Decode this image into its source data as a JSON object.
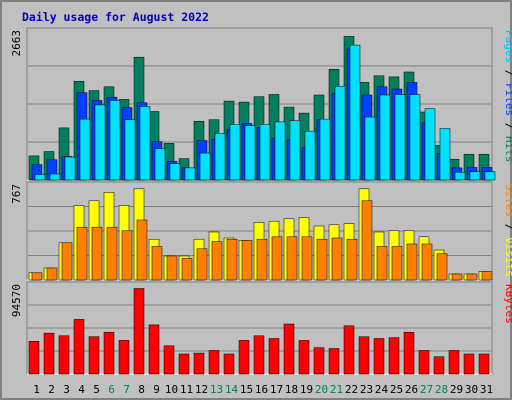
{
  "chart_data": {
    "type": "bar",
    "title": "Daily usage for August 2022",
    "categories": [
      "1",
      "2",
      "3",
      "4",
      "5",
      "6",
      "7",
      "8",
      "9",
      "10",
      "11",
      "12",
      "13",
      "14",
      "15",
      "16",
      "17",
      "18",
      "19",
      "20",
      "21",
      "22",
      "23",
      "24",
      "25",
      "26",
      "27",
      "28",
      "29",
      "30",
      "31"
    ],
    "weekend_days": [
      "6",
      "7",
      "13",
      "14",
      "20",
      "21",
      "27",
      "28"
    ],
    "panels": [
      {
        "ylabel_max": "2663",
        "ymax": 2663,
        "right_labels": [
          {
            "text": "Pages",
            "color": "#00c0ff"
          },
          {
            "text": " / ",
            "color": "#000000"
          },
          {
            "text": "Files",
            "color": "#0040ff"
          },
          {
            "text": " / ",
            "color": "#000000"
          },
          {
            "text": "Hits",
            "color": "#008060"
          }
        ],
        "series": [
          {
            "name": "Hits",
            "color": "#008060",
            "values": [
              440,
              520,
              950,
              1800,
              1630,
              1700,
              1470,
              2240,
              1250,
              670,
              390,
              1070,
              1100,
              1440,
              1420,
              1520,
              1560,
              1330,
              1220,
              1550,
              2020,
              2620,
              1780,
              1900,
              1880,
              1970,
              1240,
              630,
              380,
              470,
              470
            ]
          },
          {
            "name": "Files",
            "color": "#0040ff",
            "values": [
              280,
              370,
              430,
              1590,
              1450,
              1510,
              1320,
              1410,
              700,
              340,
              220,
              720,
              740,
              920,
              1030,
              960,
              760,
              730,
              590,
              1100,
              1580,
              2390,
              1550,
              1700,
              1660,
              1780,
              1040,
              480,
              220,
              230,
              230
            ]
          },
          {
            "name": "Pages",
            "color": "#00e0ff",
            "values": [
              100,
              110,
              420,
              1110,
              1370,
              1450,
              1100,
              1340,
              570,
              300,
              220,
              490,
              850,
              1010,
              990,
              1010,
              1060,
              1080,
              890,
              1110,
              1710,
              2460,
              1150,
              1550,
              1560,
              1560,
              1300,
              940,
              140,
              150,
              150
            ]
          }
        ]
      },
      {
        "ylabel_max": "767",
        "ymax": 767,
        "right_labels": [
          {
            "text": "Sites",
            "color": "#ff8000"
          },
          {
            "text": " / ",
            "color": "#000000"
          },
          {
            "text": "Visits",
            "color": "#ffff00"
          }
        ],
        "series": [
          {
            "name": "Visits",
            "color": "#ffff00",
            "values": [
              60,
              100,
              310,
              620,
              660,
              730,
              620,
              760,
              340,
              200,
              200,
              340,
              400,
              350,
              330,
              480,
              490,
              510,
              520,
              450,
              460,
              470,
              760,
              400,
              410,
              410,
              360,
              250,
              50,
              50,
              70
            ]
          },
          {
            "name": "Sites",
            "color": "#ff8000",
            "values": [
              60,
              100,
              310,
              440,
              440,
              440,
              410,
              500,
              280,
              200,
              180,
              260,
              320,
              340,
              330,
              340,
              360,
              360,
              360,
              340,
              350,
              340,
              660,
              280,
              280,
              300,
              300,
              220,
              50,
              50,
              70
            ]
          }
        ]
      },
      {
        "ylabel_max": "94570",
        "ymax": 94570,
        "right_labels": [
          {
            "text": "KBytes",
            "color": "#ff0000"
          }
        ],
        "series": [
          {
            "name": "KBytes",
            "color": "#ff0000",
            "values": [
              36000,
              45000,
              42000,
              60000,
              41000,
              46000,
              37000,
              94000,
              54000,
              31000,
              22000,
              23000,
              26000,
              22000,
              37000,
              42000,
              39000,
              55000,
              37000,
              29000,
              28000,
              53000,
              41000,
              39000,
              40000,
              46000,
              26000,
              19000,
              26000,
              22000,
              22000
            ]
          }
        ]
      }
    ]
  }
}
